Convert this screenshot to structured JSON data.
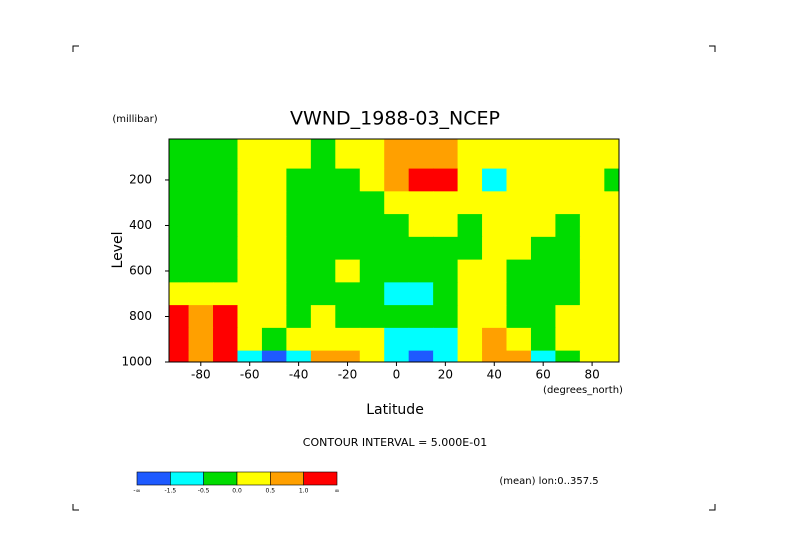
{
  "chart_data": {
    "type": "contour",
    "title": "VWND_1988-03_NCEP",
    "y_unit_label": "(millibar)",
    "y_label": "Level",
    "x_label": "Latitude",
    "x_unit_label": "(degrees_north)",
    "contour_interval": "CONTOUR INTERVAL = 5.000E-01",
    "note": "(mean) lon:0..357.5",
    "x": [
      -90,
      -80,
      -70,
      -60,
      -50,
      -40,
      -30,
      -20,
      -10,
      0,
      10,
      20,
      30,
      40,
      50,
      60,
      70,
      80,
      90
    ],
    "y": [
      100,
      200,
      300,
      400,
      500,
      600,
      700,
      800,
      900,
      1000
    ],
    "z": [
      [
        -0.2,
        -0.2,
        -0.2,
        0.2,
        0.2,
        0.2,
        -0.2,
        0.2,
        0.2,
        0.7,
        0.7,
        0.7,
        0.2,
        0.2,
        0.2,
        0.2,
        0.2,
        0.2,
        0.2
      ],
      [
        -0.2,
        -0.2,
        -0.2,
        0.2,
        0.2,
        -0.2,
        -0.2,
        -0.2,
        0.2,
        0.8,
        1.4,
        1.2,
        0.2,
        -0.6,
        0.2,
        0.2,
        0.2,
        0.2,
        -0.2
      ],
      [
        -0.2,
        -0.2,
        -0.2,
        0.2,
        0.2,
        -0.2,
        -0.2,
        -0.2,
        -0.2,
        0.2,
        0.3,
        0.2,
        0.2,
        0.2,
        0.2,
        0.2,
        0.2,
        0.2,
        0.2
      ],
      [
        -0.2,
        -0.2,
        -0.2,
        0.2,
        0.2,
        -0.2,
        -0.2,
        -0.2,
        -0.2,
        -0.2,
        0.2,
        0.2,
        -0.2,
        0.2,
        0.2,
        0.2,
        -0.2,
        0.2,
        0.2
      ],
      [
        -0.2,
        -0.2,
        -0.2,
        0.2,
        0.2,
        -0.2,
        -0.2,
        -0.2,
        -0.2,
        -0.2,
        -0.2,
        -0.2,
        -0.2,
        0.2,
        0.2,
        -0.2,
        -0.2,
        0.2,
        0.2
      ],
      [
        -0.2,
        -0.2,
        -0.2,
        0.2,
        0.2,
        -0.2,
        -0.2,
        0.1,
        -0.2,
        -0.2,
        -0.2,
        -0.2,
        0.2,
        0.2,
        -0.2,
        -0.2,
        -0.2,
        0.2,
        0.2
      ],
      [
        0.2,
        0.2,
        0.2,
        0.2,
        0.2,
        -0.2,
        -0.2,
        -0.2,
        -0.2,
        -1.0,
        -0.6,
        -0.2,
        0.2,
        0.2,
        -0.2,
        -0.2,
        -0.2,
        0.2,
        0.2
      ],
      [
        1.1,
        0.7,
        1.1,
        0.2,
        0.2,
        -0.2,
        0.2,
        -0.2,
        -0.2,
        -0.2,
        -0.2,
        -0.2,
        0.2,
        0.2,
        -0.2,
        -0.2,
        0.2,
        0.2,
        0.2
      ],
      [
        1.5,
        0.8,
        1.6,
        0.2,
        -0.2,
        0.2,
        0.2,
        0.3,
        0.2,
        -0.8,
        -1.2,
        -0.6,
        0.2,
        0.6,
        0.2,
        -0.2,
        0.2,
        0.2,
        0.2
      ],
      [
        1.6,
        0.8,
        1.8,
        -0.7,
        -1.8,
        -0.6,
        0.6,
        0.8,
        0.2,
        -1.2,
        -2.0,
        -1.0,
        0.2,
        0.7,
        0.6,
        -0.8,
        -0.2,
        0.2,
        0.2
      ]
    ],
    "levels": [
      -1.5,
      -0.5,
      {
        "value": 0,
        "label": "0.0"
      },
      0.5,
      {
        "value": 1.0,
        "label": "1.0"
      }
    ],
    "colorbar_min_label": "-∞",
    "colorbar_max_label": "∞",
    "colors": [
      "#1e5aff",
      "#00ffff",
      "#00dc00",
      "#ffff00",
      "#ffa000",
      "#ff0000"
    ],
    "xlim": [
      -93,
      91
    ],
    "ylim": [
      1000,
      20
    ],
    "xticks": [
      -80,
      -60,
      -40,
      -20,
      0,
      20,
      40,
      60,
      80
    ],
    "yticks": [
      200,
      400,
      600,
      800,
      1000
    ]
  }
}
